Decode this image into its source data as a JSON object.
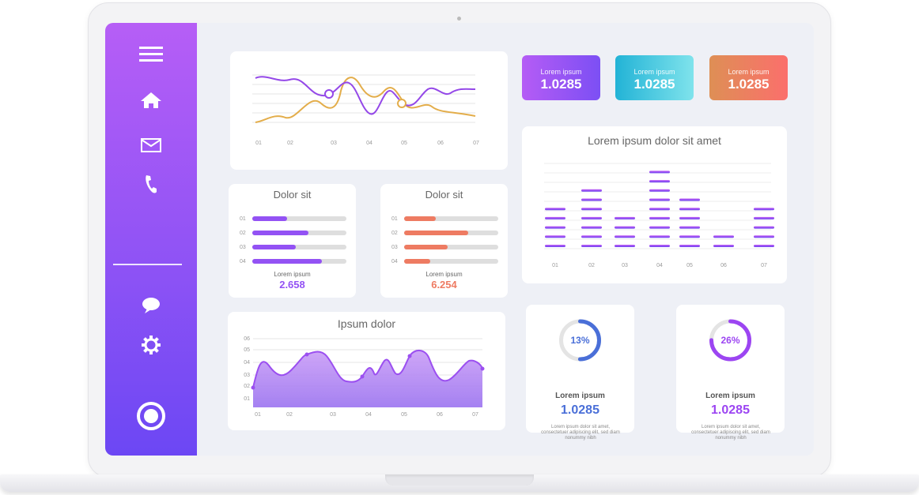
{
  "sidebar": {
    "icons": [
      "menu-icon",
      "home-icon",
      "mail-icon",
      "phone-icon",
      "chat-icon",
      "gear-icon",
      "record-icon"
    ]
  },
  "line_chart_top": {
    "x_labels": [
      "01",
      "02",
      "03",
      "04",
      "05",
      "06",
      "07"
    ]
  },
  "stat_cards": [
    {
      "label": "Lorem ipsum",
      "value": "1.0285",
      "color_from": "#b55cf5",
      "color_to": "#7c4ff4"
    },
    {
      "label": "Lorem ipsum",
      "value": "1.0285",
      "color_from": "#22b3d6",
      "color_to": "#7fe3ec"
    },
    {
      "label": "Lorem ipsum",
      "value": "1.0285",
      "color_from": "#de8f55",
      "color_to": "#fb6f6c"
    }
  ],
  "equalizer": {
    "title": "Lorem ipsum dolor sit amet",
    "x_labels": [
      "01",
      "02",
      "03",
      "04",
      "05",
      "06",
      "07"
    ],
    "levels": [
      5,
      7,
      4,
      9,
      6,
      2,
      5
    ]
  },
  "progress_cards": [
    {
      "title": "Dolor sit",
      "rows": [
        {
          "n": "01",
          "pct": 37
        },
        {
          "n": "02",
          "pct": 60
        },
        {
          "n": "03",
          "pct": 46
        },
        {
          "n": "04",
          "pct": 74
        }
      ],
      "label": "Lorem ipsum",
      "value": "2.658",
      "color": "#9352f4",
      "value_color": "#9352f4"
    },
    {
      "title": "Dolor sit",
      "rows": [
        {
          "n": "01",
          "pct": 34
        },
        {
          "n": "02",
          "pct": 68
        },
        {
          "n": "03",
          "pct": 46
        },
        {
          "n": "04",
          "pct": 28
        }
      ],
      "label": "Lorem ipsum",
      "value": "6.254",
      "color": "#ee7b62",
      "value_color": "#ee7b62"
    }
  ],
  "area_chart": {
    "title": "Ipsum dolor",
    "y_labels": [
      "06",
      "05",
      "04",
      "03",
      "02",
      "01"
    ],
    "x_labels": [
      "01",
      "02",
      "03",
      "04",
      "05",
      "06",
      "07"
    ]
  },
  "donuts": [
    {
      "pct_text": "13%",
      "percent": 13,
      "label": "Lorem ipsum",
      "value": "1.0285",
      "color": "#4a6fd8",
      "value_color": "#4a6fd8",
      "desc": "Lorem ipsum dolor sit amet, consectetuer adipiscing elit, sed diam nonummy nibh"
    },
    {
      "pct_text": "26%",
      "percent": 26,
      "label": "Lorem ipsum",
      "value": "1.0285",
      "color": "#9c45f2",
      "value_color": "#9c45f2",
      "desc": "Lorem ipsum dolor sit amet, consectetuer adipiscing elit, sed diam nonummy nibh"
    }
  ]
}
